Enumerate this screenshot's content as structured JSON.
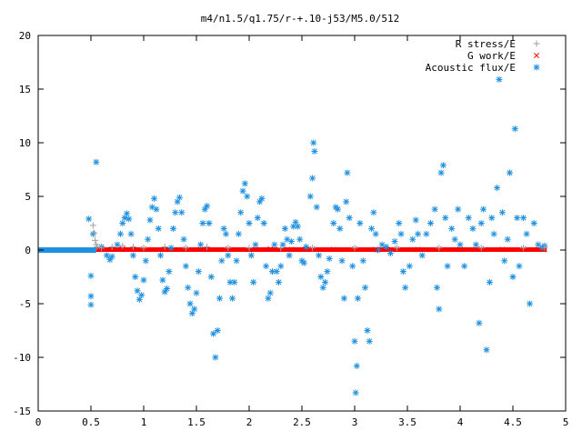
{
  "chart_data": {
    "type": "scatter",
    "title": "m4/n1.5/q1.75/r-+.10-j53/M5.0/512",
    "xlabel": "",
    "ylabel": "",
    "xlim": [
      0,
      5
    ],
    "ylim": [
      -15,
      20
    ],
    "x_ticks": [
      0,
      0.5,
      1,
      1.5,
      2,
      2.5,
      3,
      3.5,
      4,
      4.5,
      5
    ],
    "x_tick_labels": [
      "0",
      "0.5",
      "1",
      "1.5",
      "2",
      "2.5",
      "3",
      "3.5",
      "4",
      "4.5",
      "5"
    ],
    "y_ticks": [
      -15,
      -10,
      -5,
      0,
      5,
      10,
      15,
      20
    ],
    "y_tick_labels": [
      "-15",
      "-10",
      "-5",
      "0",
      "5",
      "10",
      "15",
      "20"
    ],
    "grid": false,
    "legend_position": "top-right",
    "series": [
      {
        "name": "R stress/E",
        "marker": "plus",
        "color": "#a0a0a0",
        "points": [
          [
            0.52,
            2.3
          ],
          [
            0.53,
            1.6
          ],
          [
            0.54,
            0.9
          ],
          [
            0.55,
            0.5
          ],
          [
            0.56,
            0.3
          ],
          [
            0.6,
            0.2
          ],
          [
            0.7,
            0.3
          ],
          [
            0.8,
            0.4
          ],
          [
            0.9,
            0.3
          ],
          [
            1.0,
            0.2
          ],
          [
            1.2,
            0.3
          ],
          [
            1.4,
            0.2
          ],
          [
            1.6,
            0.3
          ],
          [
            1.8,
            0.2
          ],
          [
            2.0,
            0.2
          ],
          [
            2.3,
            0.2
          ],
          [
            2.6,
            0.2
          ],
          [
            3.0,
            0.2
          ],
          [
            3.4,
            0.2
          ],
          [
            3.8,
            0.2
          ],
          [
            4.2,
            0.2
          ],
          [
            4.6,
            0.2
          ],
          [
            4.8,
            0.2
          ]
        ]
      },
      {
        "name": "G work/E",
        "marker": "cross",
        "color": "#ff0000",
        "x_range": [
          0.55,
          4.82
        ],
        "points": [
          [
            0.6,
            0.05
          ],
          [
            0.8,
            0.1
          ],
          [
            1.0,
            0.1
          ],
          [
            1.2,
            0.05
          ],
          [
            1.4,
            0.1
          ],
          [
            1.6,
            0.05
          ],
          [
            1.8,
            0.1
          ],
          [
            2.0,
            0.05
          ],
          [
            2.2,
            0.1
          ],
          [
            2.4,
            0.05
          ],
          [
            2.6,
            0.1
          ],
          [
            2.8,
            0.05
          ],
          [
            3.0,
            0.1
          ],
          [
            3.2,
            0.05
          ],
          [
            3.4,
            0.1
          ],
          [
            3.6,
            0.05
          ],
          [
            3.8,
            0.1
          ],
          [
            4.0,
            0.05
          ],
          [
            4.2,
            0.1
          ],
          [
            4.4,
            0.05
          ],
          [
            4.6,
            0.1
          ],
          [
            4.8,
            0.05
          ]
        ]
      },
      {
        "name": "Acoustic flux/E",
        "marker": "star",
        "color": "#1e90e0",
        "baseline_range": [
          0.0,
          0.55
        ],
        "points": [
          [
            0.48,
            2.9
          ],
          [
            0.5,
            -2.4
          ],
          [
            0.5,
            -4.3
          ],
          [
            0.5,
            -5.1
          ],
          [
            0.55,
            8.2
          ],
          [
            0.52,
            1.5
          ],
          [
            0.6,
            0.3
          ],
          [
            0.65,
            -0.5
          ],
          [
            0.68,
            -0.9
          ],
          [
            0.7,
            -0.6
          ],
          [
            0.75,
            0.5
          ],
          [
            0.78,
            1.5
          ],
          [
            0.8,
            2.5
          ],
          [
            0.82,
            3.0
          ],
          [
            0.84,
            3.4
          ],
          [
            0.86,
            2.9
          ],
          [
            0.88,
            1.5
          ],
          [
            0.9,
            -0.5
          ],
          [
            0.92,
            -2.5
          ],
          [
            0.94,
            -3.8
          ],
          [
            0.96,
            -4.6
          ],
          [
            0.98,
            -4.2
          ],
          [
            1.0,
            -2.8
          ],
          [
            1.02,
            -1.0
          ],
          [
            1.04,
            1.0
          ],
          [
            1.06,
            2.8
          ],
          [
            1.08,
            4.0
          ],
          [
            1.1,
            4.8
          ],
          [
            1.12,
            3.8
          ],
          [
            1.14,
            2.0
          ],
          [
            1.16,
            -0.5
          ],
          [
            1.18,
            -2.8
          ],
          [
            1.2,
            -3.9
          ],
          [
            1.22,
            -3.6
          ],
          [
            1.24,
            -2.0
          ],
          [
            1.26,
            0.2
          ],
          [
            1.28,
            2.0
          ],
          [
            1.3,
            3.5
          ],
          [
            1.32,
            4.5
          ],
          [
            1.34,
            4.9
          ],
          [
            1.36,
            3.5
          ],
          [
            1.38,
            1.0
          ],
          [
            1.4,
            -1.5
          ],
          [
            1.42,
            -3.5
          ],
          [
            1.44,
            -5.0
          ],
          [
            1.46,
            -5.9
          ],
          [
            1.48,
            -5.5
          ],
          [
            1.5,
            -4.0
          ],
          [
            1.52,
            -2.0
          ],
          [
            1.54,
            0.5
          ],
          [
            1.56,
            2.5
          ],
          [
            1.58,
            3.8
          ],
          [
            1.6,
            4.1
          ],
          [
            1.62,
            2.5
          ],
          [
            1.64,
            -2.5
          ],
          [
            1.66,
            -7.8
          ],
          [
            1.68,
            -10.0
          ],
          [
            1.7,
            -7.5
          ],
          [
            1.72,
            -4.5
          ],
          [
            1.74,
            -1.0
          ],
          [
            1.76,
            2.0
          ],
          [
            1.78,
            1.5
          ],
          [
            1.8,
            -0.5
          ],
          [
            1.82,
            -3.0
          ],
          [
            1.84,
            -4.5
          ],
          [
            1.86,
            -3.0
          ],
          [
            1.88,
            -1.0
          ],
          [
            1.9,
            1.5
          ],
          [
            1.92,
            3.5
          ],
          [
            1.94,
            5.5
          ],
          [
            1.96,
            6.2
          ],
          [
            1.98,
            5.0
          ],
          [
            2.0,
            2.5
          ],
          [
            2.02,
            -0.5
          ],
          [
            2.04,
            -3.0
          ],
          [
            2.06,
            0.5
          ],
          [
            2.08,
            3.0
          ],
          [
            2.1,
            4.5
          ],
          [
            2.12,
            4.8
          ],
          [
            2.14,
            2.5
          ],
          [
            2.16,
            -1.5
          ],
          [
            2.18,
            -4.5
          ],
          [
            2.2,
            -4.0
          ],
          [
            2.22,
            -2.0
          ],
          [
            2.24,
            0.5
          ],
          [
            2.26,
            -2.0
          ],
          [
            2.28,
            -3.0
          ],
          [
            2.3,
            -1.5
          ],
          [
            2.32,
            0.5
          ],
          [
            2.34,
            2.0
          ],
          [
            2.36,
            1.0
          ],
          [
            2.38,
            -0.5
          ],
          [
            2.4,
            0.8
          ],
          [
            2.42,
            2.2
          ],
          [
            2.44,
            2.6
          ],
          [
            2.46,
            2.2
          ],
          [
            2.48,
            1.0
          ],
          [
            2.5,
            -1.0
          ],
          [
            2.52,
            -1.2
          ],
          [
            2.54,
            0.3
          ],
          [
            2.58,
            5.0
          ],
          [
            2.6,
            6.7
          ],
          [
            2.61,
            10.0
          ],
          [
            2.62,
            9.2
          ],
          [
            2.64,
            4.0
          ],
          [
            2.66,
            -0.5
          ],
          [
            2.68,
            -2.5
          ],
          [
            2.7,
            -3.5
          ],
          [
            2.72,
            -3.0
          ],
          [
            2.74,
            -2.0
          ],
          [
            2.76,
            -0.8
          ],
          [
            2.8,
            2.5
          ],
          [
            2.82,
            4.0
          ],
          [
            2.84,
            3.8
          ],
          [
            2.86,
            2.0
          ],
          [
            2.88,
            -1.0
          ],
          [
            2.9,
            -4.5
          ],
          [
            2.92,
            4.5
          ],
          [
            2.93,
            7.2
          ],
          [
            2.95,
            3.0
          ],
          [
            2.98,
            -1.5
          ],
          [
            3.0,
            -8.5
          ],
          [
            3.01,
            -13.3
          ],
          [
            3.02,
            -10.8
          ],
          [
            3.03,
            -4.5
          ],
          [
            3.05,
            2.5
          ],
          [
            3.08,
            -1.0
          ],
          [
            3.1,
            -3.5
          ],
          [
            3.12,
            -7.5
          ],
          [
            3.14,
            -8.5
          ],
          [
            3.16,
            2.0
          ],
          [
            3.18,
            3.5
          ],
          [
            3.2,
            1.5
          ],
          [
            3.22,
            0.0
          ],
          [
            3.26,
            0.5
          ],
          [
            3.3,
            0.3
          ],
          [
            3.34,
            -0.3
          ],
          [
            3.38,
            0.8
          ],
          [
            3.42,
            2.5
          ],
          [
            3.44,
            1.5
          ],
          [
            3.46,
            -2.0
          ],
          [
            3.48,
            -3.5
          ],
          [
            3.52,
            -1.5
          ],
          [
            3.55,
            1.0
          ],
          [
            3.58,
            2.8
          ],
          [
            3.6,
            1.5
          ],
          [
            3.64,
            -0.5
          ],
          [
            3.68,
            1.5
          ],
          [
            3.72,
            2.5
          ],
          [
            3.76,
            3.8
          ],
          [
            3.78,
            -3.5
          ],
          [
            3.8,
            -5.5
          ],
          [
            3.82,
            7.2
          ],
          [
            3.84,
            7.9
          ],
          [
            3.86,
            3.0
          ],
          [
            3.88,
            -1.5
          ],
          [
            3.92,
            2.0
          ],
          [
            3.95,
            1.0
          ],
          [
            3.98,
            3.8
          ],
          [
            4.0,
            0.5
          ],
          [
            4.04,
            -1.5
          ],
          [
            4.08,
            3.0
          ],
          [
            4.12,
            2.0
          ],
          [
            4.15,
            0.5
          ],
          [
            4.18,
            -6.8
          ],
          [
            4.2,
            2.5
          ],
          [
            4.22,
            3.8
          ],
          [
            4.25,
            -9.3
          ],
          [
            4.28,
            -3.0
          ],
          [
            4.3,
            3.0
          ],
          [
            4.32,
            1.5
          ],
          [
            4.35,
            5.8
          ],
          [
            4.37,
            15.9
          ],
          [
            4.4,
            3.5
          ],
          [
            4.42,
            -1.0
          ],
          [
            4.45,
            1.0
          ],
          [
            4.47,
            7.2
          ],
          [
            4.5,
            -2.5
          ],
          [
            4.52,
            11.3
          ],
          [
            4.54,
            3.0
          ],
          [
            4.56,
            -1.5
          ],
          [
            4.6,
            3.0
          ],
          [
            4.63,
            1.5
          ],
          [
            4.66,
            -5.0
          ],
          [
            4.7,
            2.5
          ],
          [
            4.74,
            0.5
          ],
          [
            4.78,
            0.2
          ],
          [
            4.8,
            0.4
          ]
        ]
      }
    ]
  }
}
